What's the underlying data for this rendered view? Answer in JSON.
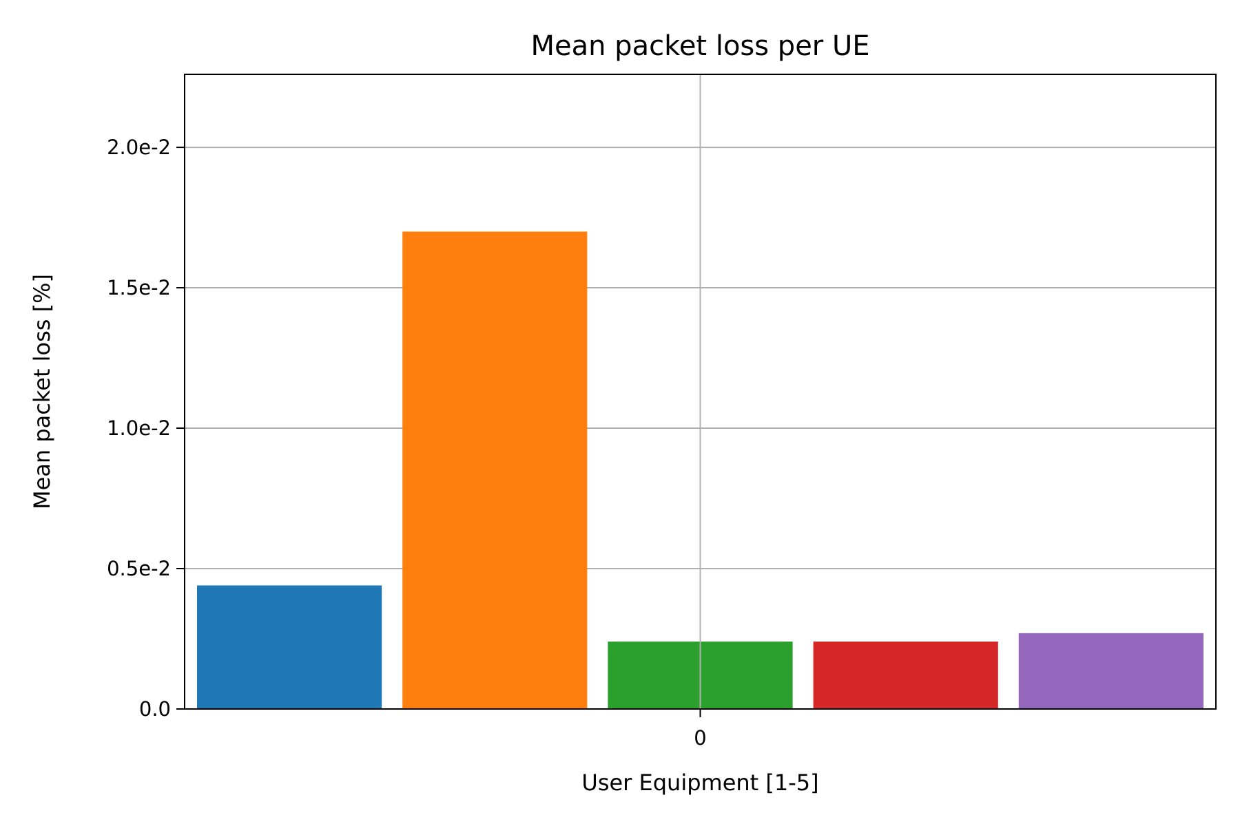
{
  "chart_data": {
    "type": "bar",
    "title": "Mean packet loss per UE",
    "xlabel": "User Equipment [1-5]",
    "ylabel": "Mean packet loss [%]",
    "x_ticks": [
      "0"
    ],
    "y_ticks": [
      {
        "value": 0,
        "label": "0.0"
      },
      {
        "value": 0.005,
        "label": "0.5e-2"
      },
      {
        "value": 0.01,
        "label": "1.0e-2"
      },
      {
        "value": 0.015,
        "label": "1.5e-2"
      },
      {
        "value": 0.02,
        "label": "2.0e-2"
      }
    ],
    "ylim": [
      0,
      0.0226
    ],
    "grid": true,
    "legend": "none",
    "series": [
      {
        "values": [
          0.0044
        ],
        "color": "#1f77b4"
      },
      {
        "values": [
          0.017
        ],
        "color": "#ff7f0e"
      },
      {
        "values": [
          0.0024
        ],
        "color": "#2ca02c"
      },
      {
        "values": [
          0.0024
        ],
        "color": "#d62728"
      },
      {
        "values": [
          0.0027
        ],
        "color": "#9467bd"
      }
    ]
  }
}
